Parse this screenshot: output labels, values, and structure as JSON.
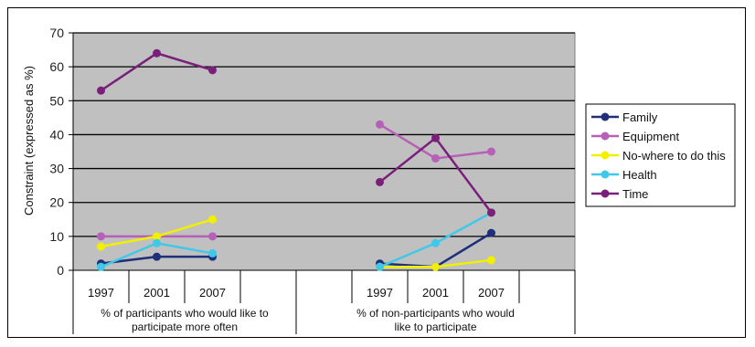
{
  "chart_data": {
    "type": "line",
    "ylabel": "Constraint (expressed as %)",
    "ylim": [
      0,
      70
    ],
    "yticks": [
      0,
      10,
      20,
      30,
      40,
      50,
      60,
      70
    ],
    "grid": true,
    "legend_position": "right",
    "background_color": "#c0c0c0",
    "groups": [
      {
        "label_line1": "% of participants who would like to",
        "label_line2": "participate more often",
        "categories": [
          "1997",
          "2001",
          "2007"
        ]
      },
      {
        "label_line1": "% of non-participants who would",
        "label_line2": "like to participate",
        "categories": [
          "1997",
          "2001",
          "2007"
        ]
      }
    ],
    "series": [
      {
        "name": "Family",
        "color": "#1f2f7a",
        "values": [
          [
            2,
            4,
            4
          ],
          [
            2,
            1,
            11
          ]
        ]
      },
      {
        "name": "Equipment",
        "color": "#b760b7",
        "values": [
          [
            10,
            10,
            10
          ],
          [
            43,
            33,
            35
          ]
        ]
      },
      {
        "name": "No-where to do this",
        "color": "#f0f000",
        "values": [
          [
            7,
            10,
            15
          ],
          [
            1,
            1,
            3
          ]
        ]
      },
      {
        "name": "Health",
        "color": "#40c8e8",
        "values": [
          [
            1,
            8,
            5
          ],
          [
            1,
            8,
            17
          ]
        ]
      },
      {
        "name": "Time",
        "color": "#7a1f7a",
        "values": [
          [
            53,
            64,
            59
          ],
          [
            26,
            39,
            17
          ]
        ]
      }
    ]
  }
}
